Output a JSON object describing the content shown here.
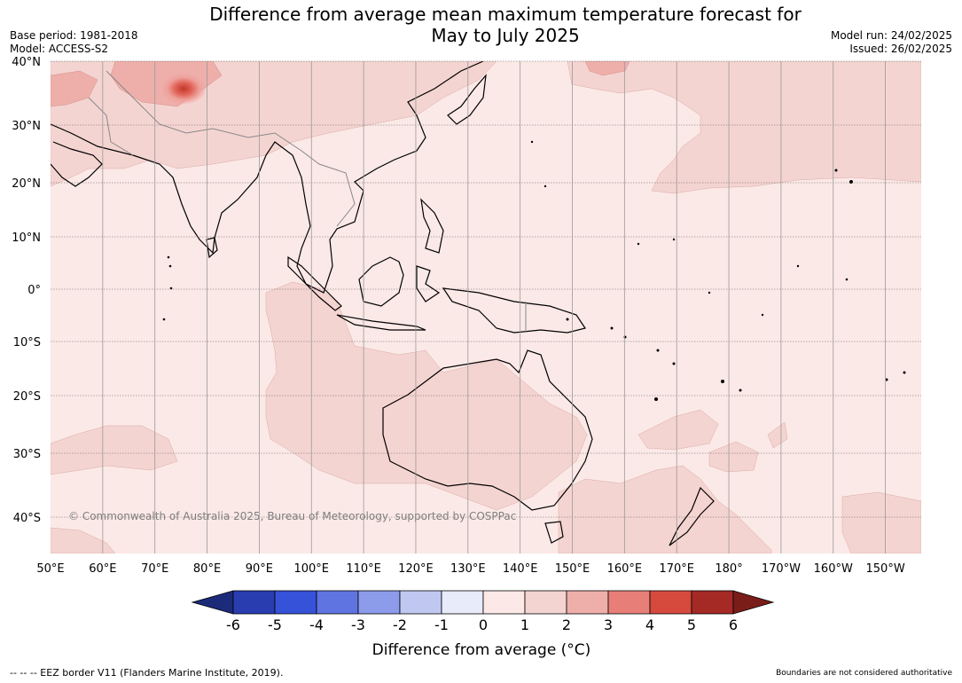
{
  "title_line1": "Difference from average mean maximum temperature forecast for",
  "title_line2": "May to July 2025",
  "base_period": "Base period: 1981-2018",
  "model": "Model: ACCESS-S2",
  "model_run": "Model run: 24/02/2025",
  "issued": "Issued: 26/02/2025",
  "copyright": "© Commonwealth of Australia 2025, Bureau of Meteorology, supported by COSPPac",
  "lat_labels": [
    "40°N",
    "30°N",
    "20°N",
    "10°N",
    "0°",
    "10°S",
    "20°S",
    "30°S",
    "40°S"
  ],
  "lon_labels": [
    "50°E",
    "60°E",
    "70°E",
    "80°E",
    "90°E",
    "100°E",
    "110°E",
    "120°E",
    "130°E",
    "140°E",
    "150°E",
    "160°E",
    "170°E",
    "180°",
    "170°W",
    "160°W",
    "150°W"
  ],
  "colorbar": {
    "ticks": [
      "-6",
      "-5",
      "-4",
      "-3",
      "-2",
      "-1",
      "0",
      "1",
      "2",
      "3",
      "4",
      "5",
      "6"
    ],
    "label": "Difference from average (°C)",
    "colors": [
      "#1c2a7a",
      "#2a3db0",
      "#3552d8",
      "#5f74e0",
      "#8c9bea",
      "#c0c8f2",
      "#e7ebfa",
      "#fce9e7",
      "#f4d4d1",
      "#eeafab",
      "#e77f78",
      "#d64a3d",
      "#a52a25",
      "#7a1d19"
    ]
  },
  "footer_left": "--  --  -- EEZ border V11 (Flanders Marine Institute, 2019).",
  "footer_right": "Boundaries are not considered authoritative"
}
